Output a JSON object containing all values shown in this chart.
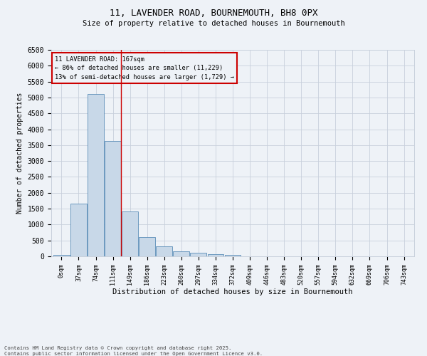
{
  "title1": "11, LAVENDER ROAD, BOURNEMOUTH, BH8 0PX",
  "title2": "Size of property relative to detached houses in Bournemouth",
  "xlabel": "Distribution of detached houses by size in Bournemouth",
  "ylabel": "Number of detached properties",
  "bar_color": "#c8d8e8",
  "bar_edge_color": "#5b8db8",
  "categories": [
    "0sqm",
    "37sqm",
    "74sqm",
    "111sqm",
    "149sqm",
    "186sqm",
    "223sqm",
    "260sqm",
    "297sqm",
    "334sqm",
    "372sqm",
    "409sqm",
    "446sqm",
    "483sqm",
    "520sqm",
    "557sqm",
    "594sqm",
    "632sqm",
    "669sqm",
    "706sqm",
    "743sqm"
  ],
  "values": [
    55,
    1650,
    5100,
    3630,
    1420,
    610,
    310,
    150,
    110,
    70,
    40,
    0,
    0,
    0,
    0,
    0,
    0,
    0,
    0,
    0,
    0
  ],
  "ylim": [
    0,
    6500
  ],
  "yticks": [
    0,
    500,
    1000,
    1500,
    2000,
    2500,
    3000,
    3500,
    4000,
    4500,
    5000,
    5500,
    6000,
    6500
  ],
  "annotation_title": "11 LAVENDER ROAD: 167sqm",
  "annotation_line1": "← 86% of detached houses are smaller (11,229)",
  "annotation_line2": "13% of semi-detached houses are larger (1,729) →",
  "annotation_box_color": "#cc0000",
  "vline_color": "#cc0000",
  "footer1": "Contains HM Land Registry data © Crown copyright and database right 2025.",
  "footer2": "Contains public sector information licensed under the Open Government Licence v3.0.",
  "bg_color": "#eef2f7",
  "grid_color": "#c8d0dc"
}
